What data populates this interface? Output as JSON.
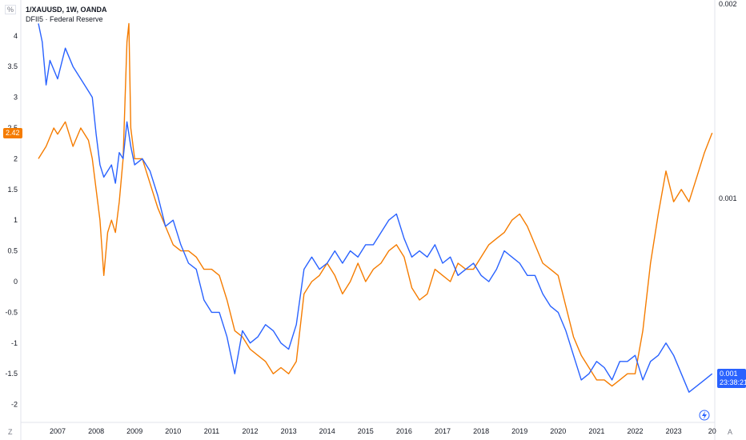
{
  "legend": {
    "line1": "1/XAUUSD, 1W, OANDA",
    "line2": "DFII5 · Federal Reserve"
  },
  "top_left_button": "%",
  "bottom_left_button": "Z",
  "bottom_right_button": "A",
  "price_labels": {
    "orange_value": "2.42",
    "blue_value": "0.001",
    "blue_countdown": "23:38:21"
  },
  "chart_data": {
    "type": "line",
    "x_ticks": [
      "2007",
      "2008",
      "2009",
      "2010",
      "2011",
      "2012",
      "2013",
      "2014",
      "2015",
      "2016",
      "2017",
      "2018",
      "2019",
      "2020",
      "2021",
      "2022",
      "2023",
      "20"
    ],
    "left_axis": {
      "ticks": [
        "4",
        "3.5",
        "3",
        "2.5",
        "2",
        "1.5",
        "1",
        "0.5",
        "0",
        "-0.5",
        "-1",
        "-1.5",
        "-2"
      ],
      "ylim": [
        -2.3,
        4.3
      ]
    },
    "right_axis": {
      "ticks": [
        "0.002",
        "0.001"
      ]
    },
    "series": [
      {
        "color": "#f57c00",
        "points": [
          [
            2006.5,
            2.0
          ],
          [
            2006.7,
            2.2
          ],
          [
            2006.9,
            2.5
          ],
          [
            2007.0,
            2.4
          ],
          [
            2007.2,
            2.6
          ],
          [
            2007.4,
            2.2
          ],
          [
            2007.6,
            2.5
          ],
          [
            2007.8,
            2.3
          ],
          [
            2007.9,
            2.0
          ],
          [
            2008.0,
            1.5
          ],
          [
            2008.1,
            1.0
          ],
          [
            2008.2,
            0.1
          ],
          [
            2008.3,
            0.8
          ],
          [
            2008.4,
            1.0
          ],
          [
            2008.5,
            0.8
          ],
          [
            2008.6,
            1.3
          ],
          [
            2008.7,
            2.0
          ],
          [
            2008.8,
            3.9
          ],
          [
            2008.85,
            4.2
          ],
          [
            2008.9,
            2.5
          ],
          [
            2009.0,
            2.0
          ],
          [
            2009.2,
            2.0
          ],
          [
            2009.4,
            1.6
          ],
          [
            2009.6,
            1.2
          ],
          [
            2009.8,
            0.9
          ],
          [
            2010.0,
            0.6
          ],
          [
            2010.2,
            0.5
          ],
          [
            2010.4,
            0.5
          ],
          [
            2010.6,
            0.4
          ],
          [
            2010.8,
            0.2
          ],
          [
            2011.0,
            0.2
          ],
          [
            2011.2,
            0.1
          ],
          [
            2011.4,
            -0.3
          ],
          [
            2011.6,
            -0.8
          ],
          [
            2011.8,
            -0.9
          ],
          [
            2012.0,
            -1.1
          ],
          [
            2012.2,
            -1.2
          ],
          [
            2012.4,
            -1.3
          ],
          [
            2012.6,
            -1.5
          ],
          [
            2012.8,
            -1.4
          ],
          [
            2013.0,
            -1.5
          ],
          [
            2013.2,
            -1.3
          ],
          [
            2013.4,
            -0.2
          ],
          [
            2013.6,
            0.0
          ],
          [
            2013.8,
            0.1
          ],
          [
            2014.0,
            0.3
          ],
          [
            2014.2,
            0.1
          ],
          [
            2014.4,
            -0.2
          ],
          [
            2014.6,
            0.0
          ],
          [
            2014.8,
            0.3
          ],
          [
            2015.0,
            0.0
          ],
          [
            2015.2,
            0.2
          ],
          [
            2015.4,
            0.3
          ],
          [
            2015.6,
            0.5
          ],
          [
            2015.8,
            0.6
          ],
          [
            2016.0,
            0.4
          ],
          [
            2016.2,
            -0.1
          ],
          [
            2016.4,
            -0.3
          ],
          [
            2016.6,
            -0.2
          ],
          [
            2016.8,
            0.2
          ],
          [
            2017.0,
            0.1
          ],
          [
            2017.2,
            0.0
          ],
          [
            2017.4,
            0.3
          ],
          [
            2017.6,
            0.2
          ],
          [
            2017.8,
            0.2
          ],
          [
            2018.0,
            0.4
          ],
          [
            2018.2,
            0.6
          ],
          [
            2018.4,
            0.7
          ],
          [
            2018.6,
            0.8
          ],
          [
            2018.8,
            1.0
          ],
          [
            2019.0,
            1.1
          ],
          [
            2019.2,
            0.9
          ],
          [
            2019.4,
            0.6
          ],
          [
            2019.6,
            0.3
          ],
          [
            2019.8,
            0.2
          ],
          [
            2020.0,
            0.1
          ],
          [
            2020.2,
            -0.4
          ],
          [
            2020.4,
            -0.9
          ],
          [
            2020.6,
            -1.2
          ],
          [
            2020.8,
            -1.4
          ],
          [
            2021.0,
            -1.6
          ],
          [
            2021.2,
            -1.6
          ],
          [
            2021.4,
            -1.7
          ],
          [
            2021.6,
            -1.6
          ],
          [
            2021.8,
            -1.5
          ],
          [
            2022.0,
            -1.5
          ],
          [
            2022.2,
            -0.8
          ],
          [
            2022.4,
            0.3
          ],
          [
            2022.6,
            1.1
          ],
          [
            2022.8,
            1.8
          ],
          [
            2023.0,
            1.3
          ],
          [
            2023.2,
            1.5
          ],
          [
            2023.4,
            1.3
          ],
          [
            2023.6,
            1.7
          ],
          [
            2023.8,
            2.1
          ],
          [
            2024.0,
            2.42
          ]
        ]
      },
      {
        "color": "#2962ff",
        "points": [
          [
            2006.5,
            4.2
          ],
          [
            2006.6,
            3.9
          ],
          [
            2006.7,
            3.2
          ],
          [
            2006.8,
            3.6
          ],
          [
            2007.0,
            3.3
          ],
          [
            2007.2,
            3.8
          ],
          [
            2007.4,
            3.5
          ],
          [
            2007.6,
            3.3
          ],
          [
            2007.8,
            3.1
          ],
          [
            2007.9,
            3.0
          ],
          [
            2008.0,
            2.4
          ],
          [
            2008.1,
            1.9
          ],
          [
            2008.2,
            1.7
          ],
          [
            2008.4,
            1.9
          ],
          [
            2008.5,
            1.6
          ],
          [
            2008.6,
            2.1
          ],
          [
            2008.7,
            2.0
          ],
          [
            2008.8,
            2.6
          ],
          [
            2008.9,
            2.2
          ],
          [
            2009.0,
            1.9
          ],
          [
            2009.2,
            2.0
          ],
          [
            2009.4,
            1.8
          ],
          [
            2009.6,
            1.4
          ],
          [
            2009.8,
            0.9
          ],
          [
            2010.0,
            1.0
          ],
          [
            2010.2,
            0.6
          ],
          [
            2010.4,
            0.3
          ],
          [
            2010.6,
            0.2
          ],
          [
            2010.8,
            -0.3
          ],
          [
            2011.0,
            -0.5
          ],
          [
            2011.2,
            -0.5
          ],
          [
            2011.4,
            -0.9
          ],
          [
            2011.6,
            -1.5
          ],
          [
            2011.8,
            -0.8
          ],
          [
            2012.0,
            -1.0
          ],
          [
            2012.2,
            -0.9
          ],
          [
            2012.4,
            -0.7
          ],
          [
            2012.6,
            -0.8
          ],
          [
            2012.8,
            -1.0
          ],
          [
            2013.0,
            -1.1
          ],
          [
            2013.2,
            -0.7
          ],
          [
            2013.4,
            0.2
          ],
          [
            2013.6,
            0.4
          ],
          [
            2013.8,
            0.2
          ],
          [
            2014.0,
            0.3
          ],
          [
            2014.2,
            0.5
          ],
          [
            2014.4,
            0.3
          ],
          [
            2014.6,
            0.5
          ],
          [
            2014.8,
            0.4
          ],
          [
            2015.0,
            0.6
          ],
          [
            2015.2,
            0.6
          ],
          [
            2015.4,
            0.8
          ],
          [
            2015.6,
            1.0
          ],
          [
            2015.8,
            1.1
          ],
          [
            2016.0,
            0.7
          ],
          [
            2016.2,
            0.4
          ],
          [
            2016.4,
            0.5
          ],
          [
            2016.6,
            0.4
          ],
          [
            2016.8,
            0.6
          ],
          [
            2017.0,
            0.3
          ],
          [
            2017.2,
            0.4
          ],
          [
            2017.4,
            0.1
          ],
          [
            2017.6,
            0.2
          ],
          [
            2017.8,
            0.3
          ],
          [
            2018.0,
            0.1
          ],
          [
            2018.2,
            0.0
          ],
          [
            2018.4,
            0.2
          ],
          [
            2018.6,
            0.5
          ],
          [
            2018.8,
            0.4
          ],
          [
            2019.0,
            0.3
          ],
          [
            2019.2,
            0.1
          ],
          [
            2019.4,
            0.1
          ],
          [
            2019.6,
            -0.2
          ],
          [
            2019.8,
            -0.4
          ],
          [
            2020.0,
            -0.5
          ],
          [
            2020.2,
            -0.8
          ],
          [
            2020.4,
            -1.2
          ],
          [
            2020.6,
            -1.6
          ],
          [
            2020.8,
            -1.5
          ],
          [
            2021.0,
            -1.3
          ],
          [
            2021.2,
            -1.4
          ],
          [
            2021.4,
            -1.6
          ],
          [
            2021.6,
            -1.3
          ],
          [
            2021.8,
            -1.3
          ],
          [
            2022.0,
            -1.2
          ],
          [
            2022.2,
            -1.6
          ],
          [
            2022.4,
            -1.3
          ],
          [
            2022.6,
            -1.2
          ],
          [
            2022.8,
            -1.0
          ],
          [
            2023.0,
            -1.2
          ],
          [
            2023.2,
            -1.5
          ],
          [
            2023.4,
            -1.8
          ],
          [
            2023.6,
            -1.7
          ],
          [
            2023.8,
            -1.6
          ],
          [
            2024.0,
            -1.5
          ]
        ]
      }
    ]
  }
}
